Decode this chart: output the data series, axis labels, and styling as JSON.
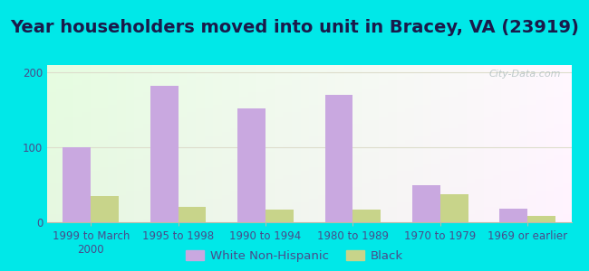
{
  "title": "Year householders moved into unit in Bracey, VA (23919)",
  "categories": [
    "1999 to March\n2000",
    "1995 to 1998",
    "1990 to 1994",
    "1980 to 1989",
    "1970 to 1979",
    "1969 or earlier"
  ],
  "white_non_hispanic": [
    100,
    182,
    152,
    170,
    50,
    18
  ],
  "black": [
    35,
    20,
    17,
    17,
    38,
    8
  ],
  "bar_color_white": "#c9a8e0",
  "bar_color_black": "#c8d48a",
  "ylim": [
    0,
    210
  ],
  "yticks": [
    0,
    100,
    200
  ],
  "background_outer": "#00e8e8",
  "title_fontsize": 14,
  "tick_fontsize": 8.5,
  "legend_fontsize": 9.5,
  "bar_width": 0.32,
  "watermark_text": "City-Data.com",
  "title_color": "#1a1a4a",
  "tick_color": "#4a4a8a",
  "grid_color": "#ddddcc",
  "spine_color": "#bbbbaa"
}
